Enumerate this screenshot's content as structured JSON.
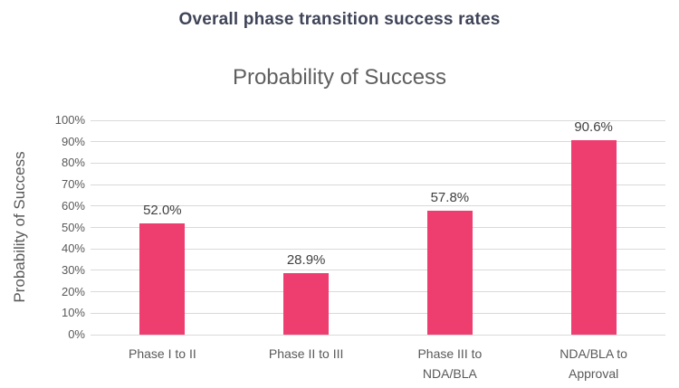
{
  "page": {
    "header_title": "Overall phase transition success rates"
  },
  "chart_data": {
    "type": "bar",
    "title": "Probability of Success",
    "xlabel": "",
    "ylabel": "Probability of Success",
    "categories": [
      "Phase I to II",
      "Phase II to III",
      "Phase III to\nNDA/BLA",
      "NDA/BLA to\nApproval"
    ],
    "values": [
      52.0,
      28.9,
      57.8,
      90.6
    ],
    "data_labels": [
      "52.0%",
      "28.9%",
      "57.8%",
      "90.6%"
    ],
    "ylim": [
      0,
      100
    ],
    "ytick_step": 10,
    "ytick_labels": [
      "0%",
      "10%",
      "20%",
      "30%",
      "40%",
      "50%",
      "60%",
      "70%",
      "80%",
      "90%",
      "100%"
    ],
    "grid": true,
    "legend": false,
    "colors": {
      "bar": "#EE3D6F",
      "gridline": "#D9D9D9",
      "header_title": "#3F4458",
      "chart_title": "#5F5F5F",
      "axis_text": "#595959",
      "data_label": "#404040",
      "background": "#FFFFFF"
    }
  }
}
